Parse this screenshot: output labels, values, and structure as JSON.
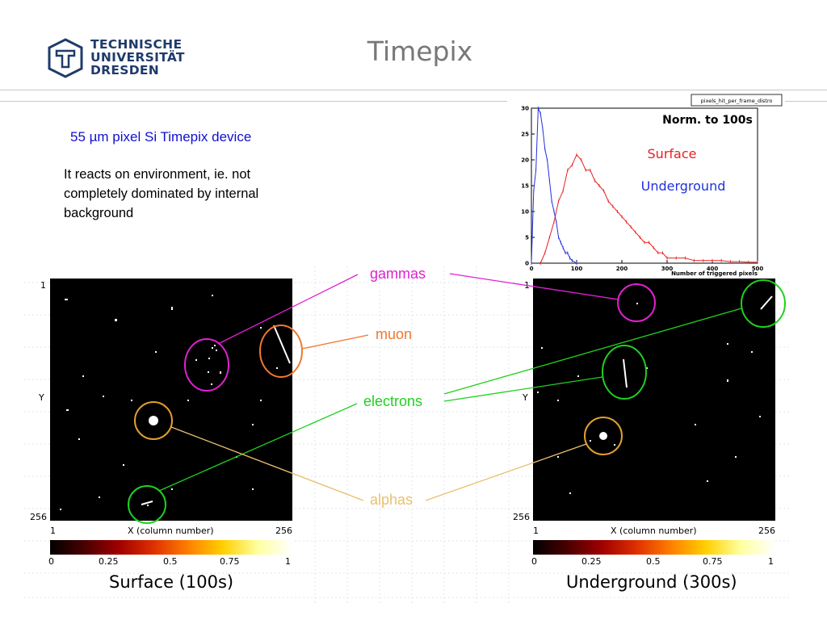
{
  "header": {
    "logo_lines": [
      "TECHNISCHE",
      "UNIVERSITÄT",
      "DRESDEN"
    ],
    "title": "Timepix",
    "brand_color": "#1f3b6b"
  },
  "intro": {
    "subtitle": "55 µm pixel Si Timepix device",
    "body": "It reacts on environment, ie. not completely dominated by internal background"
  },
  "labels": {
    "gammas": "gammas",
    "muon": "muon",
    "electrons": "electrons",
    "alphas": "alphas",
    "colors": {
      "gammas": "#e020d0",
      "muon": "#f07830",
      "electrons": "#20d020",
      "alphas": "#e8c070"
    }
  },
  "frames": [
    {
      "caption": "Surface (100s)",
      "y_top": "1",
      "y_mid": "Y",
      "y_bottom": "256",
      "x_left": "1",
      "x_label": "X (column number)",
      "x_right": "256",
      "colorbar_ticks": [
        "0",
        "0.25",
        "0.5",
        "0.75",
        "1"
      ]
    },
    {
      "caption": "Underground (300s)",
      "y_top": "1",
      "y_mid": "Y",
      "y_bottom": "256",
      "x_left": "1",
      "x_label": "X (column number)",
      "x_right": "256",
      "colorbar_ticks": [
        "0",
        "0.25",
        "0.5",
        "0.75",
        "1"
      ]
    }
  ],
  "chart_data": {
    "type": "line",
    "title": "pixels_hit_per_frame_distro",
    "annotation": "Norm. to 100s",
    "xlabel": "Number of triggered pixels",
    "ylabel": "",
    "xlim": [
      0,
      500
    ],
    "ylim": [
      0,
      30
    ],
    "x_ticks": [
      "0",
      "100",
      "200",
      "300",
      "400",
      "500"
    ],
    "y_ticks": [
      "0",
      "5",
      "10",
      "15",
      "20",
      "25",
      "30"
    ],
    "series": [
      {
        "name": "Surface",
        "color": "#e82020",
        "x": [
          20,
          30,
          40,
          50,
          60,
          70,
          80,
          90,
          100,
          110,
          120,
          130,
          140,
          150,
          160,
          170,
          180,
          190,
          200,
          210,
          220,
          230,
          240,
          250,
          260,
          270,
          280,
          290,
          300,
          320,
          340,
          360,
          380,
          400,
          420,
          440,
          460,
          480,
          500
        ],
        "y": [
          0,
          2,
          5,
          8,
          12,
          14,
          18,
          19,
          21,
          20,
          18,
          18,
          16,
          15,
          14,
          12,
          11,
          10,
          9,
          8,
          7,
          6,
          5,
          4,
          4,
          3,
          2,
          2,
          1,
          1,
          1,
          0.5,
          0.5,
          0.5,
          0.5,
          0.3,
          0.3,
          0.2,
          0.2
        ]
      },
      {
        "name": "Underground",
        "color": "#2030e0",
        "x": [
          0,
          5,
          10,
          15,
          20,
          25,
          30,
          35,
          40,
          45,
          50,
          55,
          60,
          65,
          70,
          75,
          80,
          85,
          90,
          100
        ],
        "y": [
          0,
          14,
          18,
          30,
          29,
          26,
          22,
          20,
          16,
          12,
          10,
          8,
          5,
          4,
          3,
          2,
          2,
          1,
          0.5,
          0
        ]
      }
    ]
  }
}
